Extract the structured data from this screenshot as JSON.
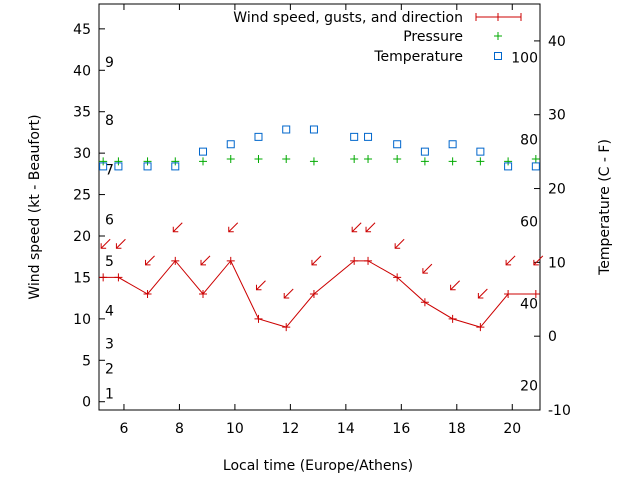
{
  "chart_data": {
    "type": "line",
    "x": [
      5.25,
      5.8,
      6.85,
      7.85,
      8.85,
      9.85,
      10.85,
      11.85,
      12.85,
      14.3,
      14.8,
      15.85,
      16.85,
      17.85,
      18.85,
      19.85,
      20.85
    ],
    "xlabel": "Local time (Europe/Athens)",
    "ylabel": "Wind speed (kt - Beaufort)",
    "y2label": "Temperature (C - F)",
    "xlim": [
      5.1,
      21.0
    ],
    "ylim": [
      -1,
      48
    ],
    "y2lim": [
      -10,
      45
    ],
    "x_ticks": [
      "6",
      "8",
      "10",
      "12",
      "14",
      "16",
      "18",
      "20"
    ],
    "y_ticks": [
      "0",
      "5",
      "10",
      "15",
      "20",
      "25",
      "30",
      "35",
      "40",
      "45"
    ],
    "y2_ticks": [
      "-10",
      "0",
      "10",
      "20",
      "30",
      "40"
    ],
    "beaufort_labels": [
      {
        "label": "1",
        "kt": 1
      },
      {
        "label": "2",
        "kt": 4
      },
      {
        "label": "3",
        "kt": 7
      },
      {
        "label": "4",
        "kt": 11
      },
      {
        "label": "5",
        "kt": 17
      },
      {
        "label": "6",
        "kt": 22
      },
      {
        "label": "7",
        "kt": 28
      },
      {
        "label": "8",
        "kt": 34
      },
      {
        "label": "9",
        "kt": 41
      }
    ],
    "fahrenheit_labels": [
      {
        "label": "20",
        "c": -6.67
      },
      {
        "label": "40",
        "c": 4.44
      },
      {
        "label": "60",
        "c": 15.56
      },
      {
        "label": "80",
        "c": 26.67
      },
      {
        "label": "100",
        "c": 37.78
      }
    ],
    "series": [
      {
        "name": "Wind speed, gusts, and direction",
        "color": "#cc0000",
        "values": [
          15,
          15,
          13,
          17,
          13,
          17,
          10,
          9,
          13,
          17,
          17,
          15,
          12,
          10,
          9,
          13,
          13
        ],
        "direction_arrow_y": [
          19,
          19,
          17,
          21,
          17,
          21,
          14,
          13,
          17,
          21,
          21,
          19,
          16,
          14,
          13,
          17,
          17
        ]
      },
      {
        "name": "Pressure",
        "color": "#00aa00",
        "values": [
          29,
          29,
          29,
          29,
          29,
          29.3,
          29.3,
          29.3,
          29,
          29.3,
          29.3,
          29.3,
          29,
          29,
          29,
          29,
          29.3
        ]
      },
      {
        "name": "Temperature",
        "color": "#0066cc",
        "values": [
          23,
          23,
          23,
          23,
          25,
          26,
          27,
          28,
          28,
          27,
          27,
          26,
          25,
          26,
          25,
          23,
          23
        ]
      }
    ],
    "legend_position": "top-right"
  }
}
